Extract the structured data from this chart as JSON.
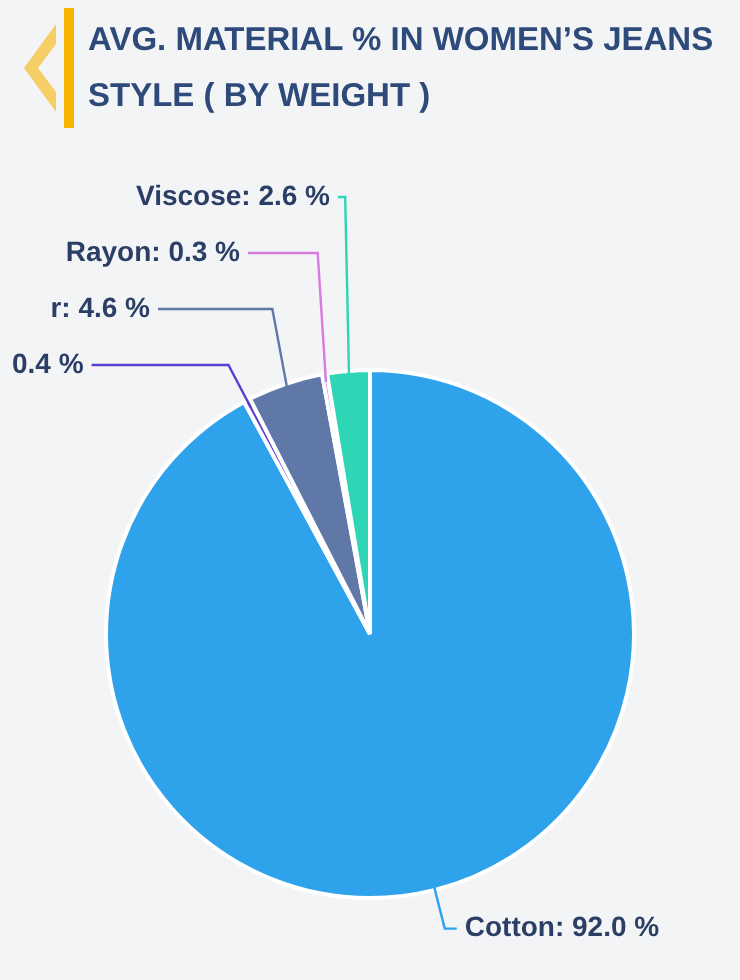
{
  "chart_data": {
    "type": "pie",
    "title": "AVG. MATERIAL % IN WOMEN’S JEANS STYLE ( BY WEIGHT )",
    "categories": [
      "Cotton",
      null,
      "r",
      "Rayon",
      "Viscose"
    ],
    "values": [
      92.0,
      0.4,
      4.6,
      0.3,
      2.6
    ],
    "colors": [
      "#2ea3ec",
      "#5b3fd0",
      "#5f78a8",
      "#d77be0",
      "#2fd6b6"
    ],
    "value_labels": [
      ": 92.0 %",
      "0.4 %",
      ": 4.6 %",
      ": 0.3 %",
      ": 2.6 %"
    ],
    "legend": false
  }
}
